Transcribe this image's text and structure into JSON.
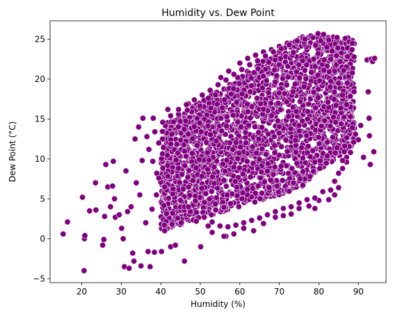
{
  "chart_data": {
    "type": "scatter",
    "title": "Humidity vs. Dew Point",
    "xlabel": "Humidity (%)",
    "ylabel": "Dew Point (°C)",
    "xlim": [
      12,
      97
    ],
    "ylim": [
      -5.5,
      27.3
    ],
    "xticks": [
      20,
      30,
      40,
      50,
      60,
      70,
      80,
      90
    ],
    "yticks": [
      -5,
      0,
      5,
      10,
      15,
      20,
      25
    ],
    "grid": false,
    "legend": "none",
    "marker_color": "#800080",
    "marker_edge_color": "#ffffff",
    "points": [
      [
        15.3,
        0.6
      ],
      [
        16.4,
        2.1
      ],
      [
        20.2,
        5.2
      ],
      [
        20.6,
        -4.0
      ],
      [
        20.7,
        0.0
      ],
      [
        20.8,
        0.4
      ],
      [
        22.0,
        3.5
      ],
      [
        23.5,
        7.0
      ],
      [
        23.6,
        3.6
      ],
      [
        25.3,
        -0.8
      ],
      [
        25.6,
        -0.1
      ],
      [
        25.8,
        2.8
      ],
      [
        26.1,
        9.3
      ],
      [
        26.6,
        6.5
      ],
      [
        27.3,
        4.0
      ],
      [
        27.8,
        6.6
      ],
      [
        28.0,
        9.7
      ],
      [
        28.3,
        5.0
      ],
      [
        28.5,
        2.7
      ],
      [
        29.5,
        3.0
      ],
      [
        30.1,
        1.3
      ],
      [
        30.5,
        0.0
      ],
      [
        30.8,
        -3.5
      ],
      [
        31.2,
        8.5
      ],
      [
        31.6,
        3.4
      ],
      [
        32.0,
        -3.7
      ],
      [
        32.5,
        4.0
      ],
      [
        32.9,
        -1.8
      ],
      [
        33.2,
        -2.8
      ],
      [
        33.5,
        12.5
      ],
      [
        33.8,
        7.0
      ],
      [
        34.4,
        14.0
      ],
      [
        34.7,
        5.5
      ],
      [
        35.0,
        -3.4
      ],
      [
        35.3,
        9.8
      ],
      [
        35.5,
        15.1
      ],
      [
        36.2,
        2.0
      ],
      [
        36.8,
        -1.6
      ],
      [
        37.3,
        -3.5
      ],
      [
        37.8,
        3.7
      ],
      [
        38.1,
        15.1
      ],
      [
        38.4,
        -1.7
      ],
      [
        38.9,
        5.5
      ],
      [
        39.5,
        12.0
      ],
      [
        40.2,
        -1.6
      ],
      [
        41.0,
        1.0
      ],
      [
        41.8,
        16.2
      ],
      [
        42.5,
        -1.0
      ],
      [
        43.0,
        3.2
      ],
      [
        43.7,
        -0.8
      ],
      [
        44.5,
        15.6
      ],
      [
        45.2,
        2.0
      ],
      [
        46.0,
        -2.8
      ],
      [
        47.0,
        16.9
      ],
      [
        50.1,
        -1.0
      ],
      [
        55.2,
        20.2
      ],
      [
        56.5,
        0.3
      ],
      [
        57.2,
        21.0
      ],
      [
        60.0,
        22.0
      ],
      [
        62.0,
        22.6
      ],
      [
        64.0,
        23.0
      ],
      [
        66.0,
        23.4
      ],
      [
        68.0,
        23.7
      ],
      [
        70.0,
        24.1
      ],
      [
        72.0,
        24.5
      ],
      [
        74.0,
        24.7
      ],
      [
        76.0,
        25.1
      ],
      [
        78.0,
        25.4
      ],
      [
        79.8,
        25.7
      ],
      [
        81.2,
        25.6
      ],
      [
        82.5,
        24.9
      ],
      [
        83.4,
        23.5
      ],
      [
        84.8,
        23.9
      ],
      [
        85.4,
        22.2
      ],
      [
        86.3,
        21.1
      ],
      [
        87.2,
        19.5
      ],
      [
        88.5,
        24.5
      ],
      [
        89.3,
        13.1
      ],
      [
        90.0,
        12.4
      ],
      [
        90.6,
        14.2
      ],
      [
        91.3,
        10.2
      ],
      [
        92.2,
        22.4
      ],
      [
        92.5,
        18.4
      ],
      [
        92.7,
        15.1
      ],
      [
        92.8,
        12.9
      ],
      [
        93.0,
        9.3
      ],
      [
        93.2,
        22.5
      ],
      [
        93.6,
        22.2
      ],
      [
        93.9,
        10.9
      ],
      [
        94.1,
        22.6
      ],
      [
        88.0,
        16.5
      ],
      [
        87.0,
        10.2
      ],
      [
        86.0,
        8.8
      ],
      [
        85.0,
        6.4
      ],
      [
        84.0,
        5.5
      ],
      [
        82.5,
        4.9
      ],
      [
        80.0,
        4.8
      ],
      [
        79.0,
        3.8
      ],
      [
        77.5,
        4.1
      ],
      [
        75.0,
        3.8
      ],
      [
        73.0,
        3.1
      ],
      [
        71.0,
        2.9
      ],
      [
        69.0,
        2.7
      ],
      [
        66.0,
        1.9
      ],
      [
        63.5,
        1.0
      ],
      [
        61.0,
        1.3
      ],
      [
        58.5,
        0.6
      ],
      [
        56.0,
        0.3
      ],
      [
        53.0,
        0.8
      ],
      [
        52.0,
        1.6
      ],
      [
        49.0,
        2.2
      ],
      [
        47.5,
        3.4
      ],
      [
        46.0,
        4.0
      ],
      [
        43.5,
        5.2
      ],
      [
        41.5,
        6.1
      ],
      [
        40.0,
        7.1
      ],
      [
        39.0,
        8.2
      ],
      [
        38.0,
        9.7
      ],
      [
        37.0,
        11.2
      ],
      [
        36.5,
        12.8
      ],
      [
        38.5,
        13.4
      ],
      [
        40.5,
        14.6
      ],
      [
        42.5,
        15.4
      ],
      [
        44.5,
        16.2
      ],
      [
        46.5,
        16.8
      ],
      [
        48.5,
        17.4
      ],
      [
        50.5,
        18.0
      ],
      [
        52.5,
        18.6
      ],
      [
        54.5,
        19.3
      ],
      [
        56.5,
        19.9
      ],
      [
        58.5,
        20.6
      ],
      [
        60.5,
        21.2
      ],
      [
        62.5,
        21.8
      ],
      [
        64.5,
        22.3
      ],
      [
        66.5,
        22.9
      ],
      [
        68.5,
        23.4
      ],
      [
        70.5,
        23.8
      ],
      [
        72.5,
        24.3
      ],
      [
        74.5,
        24.8
      ],
      [
        76.5,
        25.0
      ],
      [
        78.5,
        25.2
      ],
      [
        80.5,
        24.8
      ],
      [
        82.0,
        24.0
      ],
      [
        83.0,
        22.5
      ],
      [
        84.0,
        21.0
      ],
      [
        85.0,
        19.5
      ],
      [
        86.0,
        18.0
      ],
      [
        87.0,
        16.8
      ],
      [
        88.0,
        15.3
      ],
      [
        88.5,
        13.9
      ],
      [
        88.8,
        12.1
      ],
      [
        88.0,
        10.8
      ],
      [
        87.0,
        9.6
      ],
      [
        86.0,
        9.8
      ],
      [
        85.0,
        8.2
      ],
      [
        84.0,
        7.2
      ],
      [
        83.0,
        6.1
      ],
      [
        81.0,
        5.9
      ],
      [
        79.0,
        5.1
      ],
      [
        77.0,
        4.9
      ],
      [
        75.0,
        4.5
      ],
      [
        73.0,
        4.0
      ],
      [
        71.0,
        3.8
      ],
      [
        69.0,
        3.4
      ],
      [
        67.0,
        3.0
      ],
      [
        65.0,
        2.6
      ],
      [
        63.0,
        2.3
      ],
      [
        61.0,
        2.0
      ],
      [
        59.0,
        1.7
      ],
      [
        57.0,
        1.5
      ],
      [
        55.0,
        1.6
      ],
      [
        53.0,
        2.1
      ],
      [
        51.0,
        2.7
      ],
      [
        49.0,
        3.3
      ],
      [
        47.0,
        4.0
      ],
      [
        45.0,
        4.8
      ],
      [
        43.0,
        5.6
      ],
      [
        41.0,
        6.5
      ],
      [
        39.5,
        7.6
      ]
    ]
  }
}
